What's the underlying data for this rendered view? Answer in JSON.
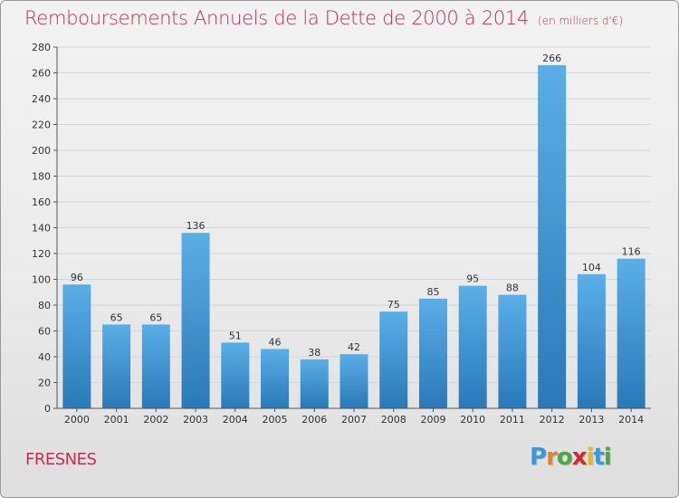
{
  "title": "Remboursements Annuels de la Dette de 2000 à 2014",
  "unit_note": "(en milliers d'€)",
  "city": "FRESNES",
  "logo": {
    "letters": [
      "P",
      "r",
      "o",
      "x",
      "i",
      "t",
      "i"
    ],
    "colors": [
      "#3a9ad9",
      "#e8821e",
      "#49a842",
      "#d9262c",
      "#e8b81e",
      "#3a9ad9",
      "#49a842"
    ]
  },
  "chart_data": {
    "type": "bar",
    "title": "Remboursements Annuels de la Dette de 2000 à 2014",
    "categories": [
      "2000",
      "2001",
      "2002",
      "2003",
      "2004",
      "2005",
      "2006",
      "2007",
      "2008",
      "2009",
      "2010",
      "2011",
      "2012",
      "2013",
      "2014"
    ],
    "values": [
      96,
      65,
      65,
      136,
      51,
      46,
      38,
      42,
      75,
      85,
      95,
      88,
      266,
      104,
      116
    ],
    "ylim": [
      0,
      280
    ],
    "yticks": [
      0,
      20,
      40,
      60,
      80,
      100,
      120,
      140,
      160,
      180,
      200,
      220,
      240,
      260,
      280
    ],
    "grid": true,
    "colors": {
      "bar_top": "#5aafe8",
      "bar_bottom": "#2979b9",
      "grid": "#d4d4d4"
    }
  }
}
